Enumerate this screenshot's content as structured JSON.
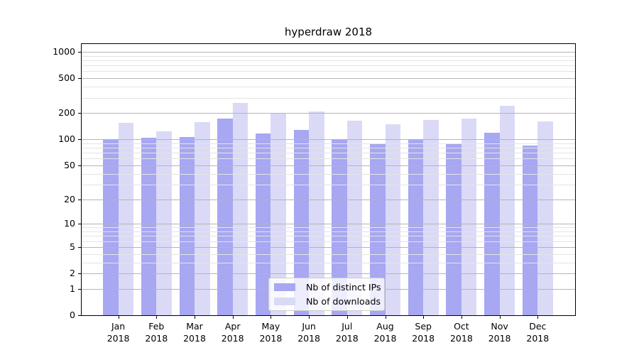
{
  "title": "hyperdraw 2018",
  "chart_data": {
    "type": "bar",
    "title": "hyperdraw 2018",
    "categories": [
      "Jan 2018",
      "Feb 2018",
      "Mar 2018",
      "Apr 2018",
      "May 2018",
      "Jun 2018",
      "Jul 2018",
      "Aug 2018",
      "Sep 2018",
      "Oct 2018",
      "Nov 2018",
      "Dec 2018"
    ],
    "x_tick_months": [
      "Jan",
      "Feb",
      "Mar",
      "Apr",
      "May",
      "Jun",
      "Jul",
      "Aug",
      "Sep",
      "Oct",
      "Nov",
      "Dec"
    ],
    "x_tick_year": "2018",
    "series": [
      {
        "name": "Nb of distinct IPs",
        "color": "#a7a7f2",
        "values": [
          100,
          104,
          107,
          172,
          117,
          127,
          100,
          90,
          100,
          88,
          119,
          84
        ]
      },
      {
        "name": "Nb of downloads",
        "color": "#dadaf7",
        "values": [
          154,
          124,
          156,
          261,
          200,
          210,
          163,
          149,
          166,
          173,
          240,
          160
        ]
      }
    ],
    "xlabel": "",
    "ylabel": "",
    "y_scale": "log1p",
    "y_major_ticks": [
      0,
      1,
      2,
      5,
      10,
      20,
      50,
      100,
      200,
      500,
      1000
    ],
    "y_minor_gridlines": [
      3,
      4,
      6,
      7,
      8,
      9,
      30,
      40,
      60,
      70,
      80,
      90,
      300,
      400,
      600,
      700,
      800,
      900
    ],
    "ylim": [
      0,
      1230
    ],
    "grid": "on",
    "legend_position": "lower center"
  },
  "colors": {
    "major_grid": "#b5b5b5",
    "minor_grid": "#e4e4e4",
    "axis_spine": "#000000",
    "legend_border": "#cccccc"
  }
}
